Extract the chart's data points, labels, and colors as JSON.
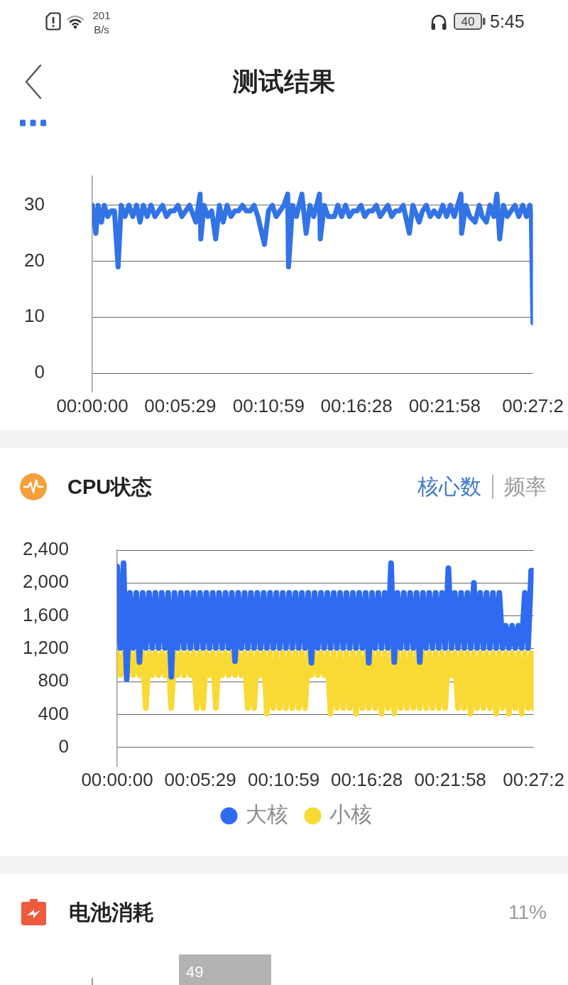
{
  "chart_data": [
    {
      "type": "other",
      "title": "测试结果",
      "annotations": [
        "201",
        "B/s",
        "40",
        "5:45"
      ]
    },
    {
      "type": "line",
      "x": [
        0,
        0.0037,
        0.006,
        0.0095,
        0.0125,
        0.016,
        0.0195,
        0.023,
        0.0268,
        0.03,
        0.034,
        0.038,
        0.042,
        0.046,
        0.0496,
        0.053,
        0.057,
        0.061,
        0.065,
        0.069,
        0.073,
        0.077,
        0.081,
        0.085,
        0.089,
        0.093,
        0.097,
        0.101,
        0.1076,
        0.112,
        0.1127,
        0.116,
        0.12,
        0.124,
        0.1282,
        0.132,
        0.1359,
        0.14,
        0.144,
        0.148,
        0.152,
        0.156,
        0.16,
        0.164,
        0.168,
        0.172,
        0.1788,
        0.183,
        0.187,
        0.191,
        0.195,
        0.199,
        0.203,
        0.2038,
        0.208,
        0.212,
        0.2177,
        0.2221,
        0.226,
        0.23,
        0.236,
        0.2368,
        0.241,
        0.245,
        0.2515,
        0.255,
        0.259,
        0.263,
        0.267,
        0.271,
        0.275,
        0.279,
        0.283,
        0.287,
        0.291,
        0.295,
        0.299,
        0.303,
        0.307,
        0.311,
        0.315,
        0.319,
        0.323,
        0.3293,
        0.333,
        0.3395,
        0.343,
        0.347,
        0.351,
        0.355,
        0.3597,
        0.364,
        0.368,
        0.372,
        0.376,
        0.383,
        0.3836,
        0.388,
        0.392,
        0.3976,
        0.402,
        0.405,
        0.4093,
        0.413,
        0.417,
        0.4203,
        0.4232,
        0.427,
        0.431,
        0.435,
        0.439,
        0.443,
        0.447,
        0.451,
        0.4545,
        0.456,
        0.4577
      ],
      "values": [
        30,
        25,
        30,
        27,
        30,
        28,
        29,
        29,
        19,
        30,
        28,
        30,
        28,
        30,
        27,
        30,
        28,
        30,
        28,
        29,
        30,
        28,
        29,
        29,
        30,
        28,
        29,
        30,
        27,
        32,
        24,
        30,
        28,
        29,
        24,
        30,
        27,
        30,
        28,
        29,
        29,
        30,
        29,
        29,
        30,
        28,
        23,
        29,
        30,
        28,
        29,
        30,
        32,
        19,
        30,
        28,
        32,
        25,
        30,
        28,
        32,
        24,
        30,
        28,
        28,
        30,
        28,
        30,
        28,
        29,
        29,
        30,
        28,
        29,
        29,
        30,
        28,
        29,
        30,
        28,
        29,
        29,
        30,
        25,
        30,
        27,
        29,
        30,
        28,
        29,
        28,
        30,
        28,
        30,
        28,
        32,
        25,
        30,
        28,
        27,
        30,
        28,
        27,
        30,
        28,
        32,
        24,
        30,
        28,
        29,
        30,
        28,
        30,
        28,
        30,
        28,
        9
      ],
      "color": "#3273e6",
      "xlim": [
        0,
        0.4577
      ],
      "xticks": [
        {
          "value": 0,
          "label": "00:00:00"
        },
        {
          "value": 0.0914,
          "label": "00:05:29"
        },
        {
          "value": 0.1831,
          "label": "00:10:59"
        },
        {
          "value": 0.2744,
          "label": "00:16:28"
        },
        {
          "value": 0.3661,
          "label": "00:21:58"
        },
        {
          "value": 0.4577,
          "label": "00:27:2"
        }
      ],
      "ylim": [
        -3.3,
        35.2
      ],
      "yticks": [
        0,
        10,
        20,
        30
      ],
      "grid": "y"
    },
    {
      "type": "line",
      "title": "CPU状态",
      "annotations": [
        "核心数",
        "频率"
      ],
      "x": [
        0,
        0.0035,
        0.007,
        0.0105,
        0.014,
        0.0175,
        0.021,
        0.0245,
        0.028,
        0.0315,
        0.035,
        0.0385,
        0.042,
        0.0455,
        0.049,
        0.0525,
        0.056,
        0.0595,
        0.063,
        0.0665,
        0.07,
        0.0735,
        0.077,
        0.0805,
        0.084,
        0.0875,
        0.091,
        0.0945,
        0.098,
        0.1015,
        0.105,
        0.1085,
        0.112,
        0.1155,
        0.119,
        0.1225,
        0.126,
        0.1295,
        0.133,
        0.1365,
        0.14,
        0.1435,
        0.147,
        0.1505,
        0.154,
        0.1575,
        0.161,
        0.1645,
        0.168,
        0.1715,
        0.175,
        0.1785,
        0.182,
        0.1855,
        0.189,
        0.1925,
        0.196,
        0.1995,
        0.203,
        0.2065,
        0.21,
        0.2135,
        0.217,
        0.2205,
        0.224,
        0.2275,
        0.231,
        0.2345,
        0.238,
        0.2415,
        0.245,
        0.2485,
        0.252,
        0.2555,
        0.259,
        0.2625,
        0.266,
        0.2695,
        0.273,
        0.2765,
        0.28,
        0.2835,
        0.287,
        0.2905,
        0.294,
        0.2975,
        0.301,
        0.3045,
        0.308,
        0.3115,
        0.315,
        0.3185,
        0.322,
        0.3255,
        0.329,
        0.3325,
        0.336,
        0.3395,
        0.343,
        0.3465,
        0.35,
        0.3535,
        0.357,
        0.3605,
        0.364,
        0.3675,
        0.371,
        0.3745,
        0.378,
        0.3815,
        0.385,
        0.3885,
        0.392,
        0.3955,
        0.399,
        0.4025,
        0.406,
        0.4095,
        0.413,
        0.4165,
        0.42,
        0.4235,
        0.427,
        0.4305,
        0.434,
        0.4375,
        0.441,
        0.4445,
        0.448,
        0.4515,
        0.455,
        0.4577
      ],
      "series": [
        {
          "name": "大核",
          "color": "#2e6bf0",
          "values": [
            2200,
            1210,
            2240,
            830,
            1880,
            1210,
            1880,
            1040,
            1880,
            1210,
            1880,
            1210,
            1880,
            1210,
            1880,
            1210,
            1880,
            860,
            1880,
            1210,
            1880,
            1210,
            1880,
            1210,
            1880,
            1210,
            1880,
            1210,
            1880,
            1210,
            1880,
            1210,
            1880,
            1210,
            1880,
            1210,
            1880,
            1050,
            1880,
            1210,
            1880,
            1210,
            1880,
            1210,
            1880,
            1210,
            1880,
            1210,
            1880,
            1210,
            1880,
            1210,
            1880,
            1210,
            1880,
            1210,
            1880,
            1210,
            1880,
            1210,
            1880,
            1030,
            1880,
            1210,
            1880,
            1210,
            1880,
            1210,
            1880,
            1210,
            1880,
            1210,
            1880,
            1210,
            1880,
            1210,
            1880,
            1210,
            1880,
            1030,
            1880,
            1210,
            1880,
            1210,
            1880,
            1210,
            2240,
            1040,
            1880,
            1210,
            1880,
            1210,
            1880,
            1210,
            1880,
            1040,
            1880,
            1210,
            1880,
            1210,
            1880,
            1210,
            1880,
            1210,
            2180,
            1210,
            1880,
            1210,
            1880,
            1210,
            1880,
            1210,
            2000,
            1210,
            1880,
            1210,
            1880,
            1210,
            1880,
            1210,
            1880,
            1210,
            1480,
            1210,
            1480,
            1210,
            1480,
            1210,
            1880,
            1210,
            2150,
            2150
          ]
        },
        {
          "name": "小核",
          "color": "#f9d934",
          "values": [
            1150,
            880,
            1150,
            880,
            1150,
            880,
            1150,
            880,
            1150,
            480,
            1150,
            880,
            1150,
            880,
            1150,
            880,
            1150,
            480,
            1150,
            880,
            1150,
            880,
            1150,
            880,
            1150,
            480,
            1150,
            480,
            1150,
            880,
            1150,
            480,
            1150,
            880,
            1150,
            880,
            1150,
            880,
            1150,
            880,
            1150,
            480,
            1150,
            480,
            1150,
            880,
            1150,
            410,
            1150,
            480,
            1150,
            480,
            1150,
            480,
            1150,
            480,
            1150,
            480,
            1150,
            480,
            1150,
            880,
            1150,
            880,
            1150,
            880,
            1150,
            410,
            1150,
            480,
            1150,
            480,
            1150,
            480,
            1150,
            410,
            1150,
            480,
            1150,
            480,
            1150,
            480,
            1150,
            410,
            1150,
            480,
            1150,
            410,
            1150,
            480,
            1150,
            480,
            1150,
            480,
            1150,
            480,
            1150,
            480,
            1150,
            480,
            1150,
            480,
            1150,
            480,
            1150,
            880,
            1150,
            480,
            1150,
            480,
            1150,
            410,
            1150,
            480,
            1150,
            480,
            1150,
            480,
            1150,
            410,
            1150,
            480,
            1150,
            410,
            1150,
            480,
            1150,
            410,
            1150,
            480,
            1150,
            480
          ]
        }
      ],
      "xlim": [
        0,
        0.4577
      ],
      "xticks": [
        {
          "value": 0,
          "label": "00:00:00"
        },
        {
          "value": 0.0914,
          "label": "00:05:29"
        },
        {
          "value": 0.1831,
          "label": "00:10:59"
        },
        {
          "value": 0.2744,
          "label": "00:16:28"
        },
        {
          "value": 0.3661,
          "label": "00:21:58"
        },
        {
          "value": 0.4577,
          "label": "00:27:2"
        }
      ],
      "ylim": [
        -226,
        2400
      ],
      "yticks": [
        0,
        400,
        800,
        {
          "value": 1200,
          "label": "1,200"
        },
        {
          "value": 1600,
          "label": "1,600"
        },
        {
          "value": 2000,
          "label": "2,000"
        },
        {
          "value": 2400,
          "label": "2,400"
        }
      ],
      "grid": "y",
      "legend": "bottom"
    },
    {
      "type": "other",
      "title": "电池消耗",
      "annotations": [
        "11%",
        "49"
      ]
    }
  ]
}
